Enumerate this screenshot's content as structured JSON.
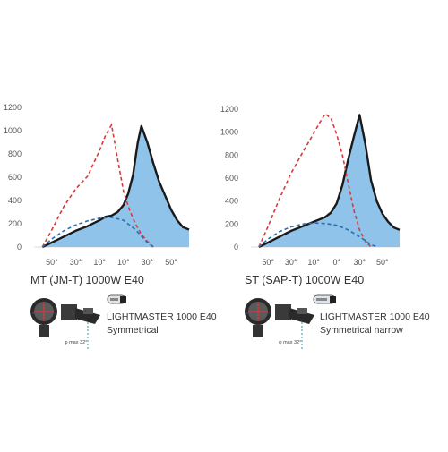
{
  "chart_data": [
    {
      "type": "line",
      "title": "MT (JM-T) 1000W E40",
      "ylim": [
        0,
        1200
      ],
      "yticks": [
        0,
        200,
        400,
        600,
        800,
        1000,
        1200
      ],
      "xticks": [
        "50°",
        "30°",
        "10°",
        "10°",
        "30°",
        "50°"
      ],
      "xlim": [
        -65,
        65
      ],
      "series": [
        {
          "style": "solid-filled",
          "color": "#1a1a1a",
          "fill": "#8fc3ea",
          "x": [
            -58,
            -50,
            -40,
            -30,
            -20,
            -10,
            -5,
            0,
            5,
            10,
            14,
            18,
            20,
            22,
            25,
            30,
            35,
            40,
            45,
            50,
            55,
            60,
            65
          ],
          "y": [
            0,
            40,
            90,
            140,
            180,
            230,
            260,
            270,
            300,
            360,
            460,
            620,
            760,
            900,
            1040,
            900,
            720,
            560,
            440,
            320,
            230,
            170,
            150
          ]
        },
        {
          "style": "dashed",
          "color": "#d83a3a",
          "x": [
            -58,
            -50,
            -40,
            -30,
            -20,
            -15,
            -10,
            -5,
            0,
            5,
            10,
            15,
            20,
            25,
            30,
            35
          ],
          "y": [
            0,
            150,
            350,
            500,
            610,
            720,
            830,
            960,
            1050,
            760,
            480,
            320,
            200,
            110,
            50,
            0
          ]
        },
        {
          "style": "dashed",
          "color": "#2b6fb0",
          "x": [
            -58,
            -50,
            -40,
            -30,
            -20,
            -10,
            0,
            10,
            20,
            30,
            35
          ],
          "y": [
            0,
            70,
            140,
            190,
            225,
            248,
            255,
            230,
            150,
            40,
            0
          ]
        }
      ]
    },
    {
      "type": "line",
      "title": "ST (SAP-T) 1000W E40",
      "ylim": [
        0,
        1200
      ],
      "yticks": [
        0,
        200,
        400,
        600,
        800,
        1000,
        1200
      ],
      "xticks": [
        "50°",
        "30°",
        "10°",
        "0°",
        "30°",
        "50°"
      ],
      "xlim": [
        -65,
        65
      ],
      "series": [
        {
          "style": "solid-filled",
          "color": "#1a1a1a",
          "fill": "#8fc3ea",
          "x": [
            -58,
            -50,
            -40,
            -30,
            -20,
            -10,
            -5,
            0,
            5,
            10,
            15,
            20,
            25,
            30,
            35,
            40,
            45,
            50,
            55,
            60,
            65
          ],
          "y": [
            0,
            40,
            90,
            140,
            180,
            220,
            240,
            260,
            300,
            380,
            540,
            760,
            960,
            1150,
            900,
            580,
            400,
            290,
            220,
            170,
            150
          ]
        },
        {
          "style": "dashed",
          "color": "#d83a3a",
          "x": [
            -58,
            -50,
            -40,
            -30,
            -20,
            -10,
            -5,
            0,
            5,
            10,
            15,
            20,
            25,
            30,
            35,
            40
          ],
          "y": [
            0,
            180,
            420,
            640,
            820,
            990,
            1080,
            1160,
            1120,
            980,
            800,
            560,
            320,
            150,
            50,
            0
          ]
        },
        {
          "style": "dashed",
          "color": "#2b6fb0",
          "x": [
            -58,
            -50,
            -40,
            -30,
            -20,
            -10,
            0,
            10,
            20,
            30,
            40,
            46
          ],
          "y": [
            0,
            70,
            135,
            175,
            200,
            210,
            205,
            190,
            150,
            90,
            20,
            0
          ]
        }
      ]
    }
  ],
  "panels": [
    {
      "title": "MT (JM-T) 1000W E40",
      "product": "LIGHTMASTER 1000 E40",
      "distribution": "Symmetrical",
      "note": "φ max 32°"
    },
    {
      "title": "ST (SAP-T) 1000W E40",
      "product": "LIGHTMASTER 1000 E40",
      "distribution": "Symmetrical narrow",
      "note": "φ max 32°"
    }
  ]
}
